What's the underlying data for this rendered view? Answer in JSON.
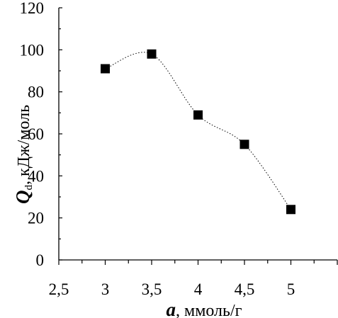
{
  "chart_data": {
    "type": "line",
    "x": [
      3,
      3.5,
      4,
      4.5,
      5
    ],
    "series": [
      {
        "values": [
          91,
          98,
          69,
          55,
          24
        ]
      }
    ],
    "xlim": [
      2.5,
      5.5
    ],
    "ylim": [
      0,
      120
    ],
    "xticks": [
      "2,5",
      "3",
      "3,5",
      "4",
      "4,5",
      "5"
    ],
    "yticks": [
      "0",
      "20",
      "40",
      "60",
      "80",
      "100",
      "120"
    ],
    "ylabel": {
      "symbol": "Q",
      "subscript": "d",
      "rest": ", кДж/моль"
    },
    "xlabel": {
      "symbol": "a",
      "rest": ", ммоль/г"
    },
    "grid": false,
    "marker": "square",
    "line_style": "dotted"
  }
}
